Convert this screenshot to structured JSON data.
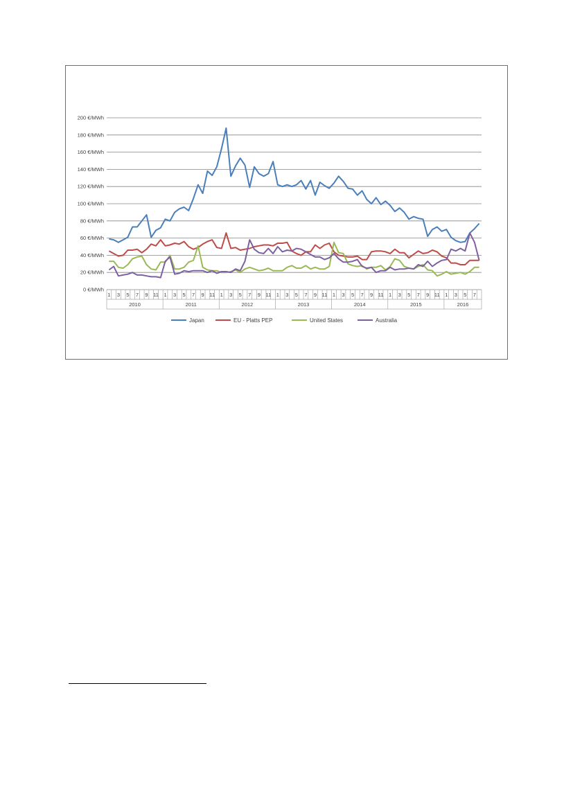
{
  "chart_data": {
    "type": "line",
    "y_unit": "€/MWh",
    "ylim": [
      0,
      200
    ],
    "y_ticks": [
      0,
      20,
      40,
      60,
      80,
      100,
      120,
      140,
      160,
      180,
      200
    ],
    "y_tick_labels": [
      "0 €/MWh",
      "20 €/MWh",
      "40 €/MWh",
      "60 €/MWh",
      "80 €/MWh",
      "100 €/MWh",
      "120 €/MWh",
      "140 €/MWh",
      "160 €/MWh",
      "180 €/MWh",
      "200 €/MWh"
    ],
    "grid": true,
    "legend_position": "bottom",
    "month_tick_labels": [
      "1",
      "3",
      "5",
      "7",
      "9",
      "11"
    ],
    "month_tick_labels_2016": [
      "1",
      "3",
      "5",
      "7"
    ],
    "years": [
      "2010",
      "2011",
      "2012",
      "2013",
      "2014",
      "2015",
      "2016"
    ],
    "n_points": 80,
    "series": [
      {
        "name": "Japan",
        "color": "#4a7ebb",
        "values": [
          59,
          58,
          55,
          58,
          61,
          73,
          73,
          80,
          87,
          61,
          69,
          72,
          82,
          80,
          90,
          94,
          96,
          92,
          106,
          122,
          112,
          138,
          133,
          143,
          164,
          188,
          132,
          144,
          153,
          145,
          119,
          143,
          135,
          132,
          135,
          149,
          122,
          120,
          122,
          120,
          122,
          127,
          117,
          127,
          110,
          125,
          121,
          118,
          124,
          132,
          126,
          118,
          117,
          110,
          115,
          105,
          100,
          107,
          99,
          103,
          98,
          91,
          95,
          90,
          82,
          85,
          83,
          82,
          62,
          70,
          73,
          68,
          70,
          61,
          57,
          55,
          56,
          66,
          71,
          77
        ]
      },
      {
        "name": "EU - Platts PEP",
        "color": "#be4b48",
        "values": [
          45,
          42,
          39,
          40,
          46,
          46,
          47,
          43,
          47,
          53,
          51,
          58,
          51,
          52,
          54,
          53,
          56,
          50,
          47,
          49,
          53,
          56,
          58,
          49,
          48,
          66,
          48,
          49,
          46,
          47,
          48,
          50,
          51,
          52,
          52,
          51,
          54,
          54,
          55,
          45,
          42,
          40,
          44,
          44,
          52,
          48,
          52,
          54,
          44,
          40,
          39,
          38,
          38,
          39,
          35,
          35,
          44,
          45,
          45,
          44,
          42,
          47,
          43,
          43,
          37,
          41,
          45,
          42,
          43,
          46,
          44,
          39,
          37,
          31,
          31,
          29,
          29,
          34,
          34,
          34
        ]
      },
      {
        "name": "United States",
        "color": "#98b954",
        "values": [
          33,
          33,
          26,
          25,
          29,
          36,
          38,
          39,
          29,
          24,
          23,
          32,
          32,
          40,
          24,
          24,
          26,
          32,
          34,
          51,
          26,
          23,
          22,
          22,
          20,
          20,
          21,
          23,
          20,
          24,
          26,
          24,
          22,
          23,
          25,
          22,
          22,
          22,
          26,
          28,
          25,
          25,
          28,
          24,
          26,
          24,
          24,
          27,
          55,
          43,
          42,
          30,
          28,
          27,
          28,
          24,
          26,
          26,
          28,
          23,
          27,
          36,
          34,
          27,
          25,
          24,
          27,
          29,
          23,
          22,
          16,
          18,
          21,
          18,
          19,
          20,
          18,
          21,
          26,
          26
        ]
      },
      {
        "name": "Australia",
        "color": "#7d60a0",
        "values": [
          23,
          27,
          16,
          17,
          18,
          20,
          17,
          17,
          16,
          15,
          15,
          14,
          33,
          38,
          18,
          19,
          22,
          21,
          22,
          22,
          22,
          20,
          22,
          19,
          21,
          21,
          20,
          24,
          22,
          33,
          58,
          47,
          43,
          42,
          48,
          42,
          50,
          44,
          46,
          45,
          48,
          47,
          44,
          41,
          38,
          38,
          35,
          37,
          42,
          36,
          32,
          32,
          33,
          35,
          27,
          25,
          26,
          20,
          22,
          22,
          26,
          23,
          24,
          24,
          25,
          24,
          29,
          27,
          33,
          27,
          31,
          34,
          35,
          47,
          45,
          48,
          45,
          66,
          55,
          34
        ]
      }
    ]
  }
}
